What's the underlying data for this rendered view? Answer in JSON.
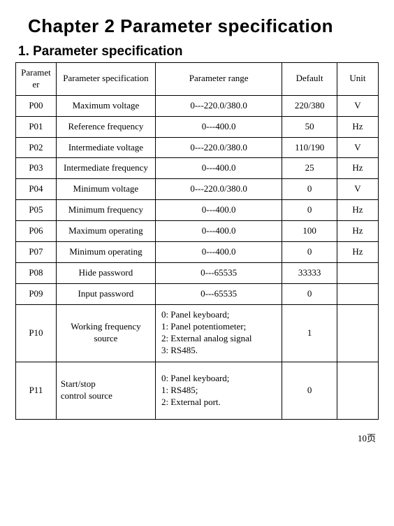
{
  "chapter_title": "Chapter 2   Parameter specification",
  "section_title": "1. Parameter specification",
  "columns": [
    "Parameter",
    "Parameter specification",
    "Parameter range",
    "Default",
    "Unit"
  ],
  "rows": [
    {
      "p": "P00",
      "spec": "Maximum voltage",
      "range": "0---220.0/380.0",
      "def": "220/380",
      "unit": "V"
    },
    {
      "p": "P01",
      "spec": "Reference frequency",
      "range": "0---400.0",
      "def": "50",
      "unit": "Hz"
    },
    {
      "p": "P02",
      "spec": "Intermediate voltage",
      "range": "0---220.0/380.0",
      "def": "110/190",
      "unit": "V"
    },
    {
      "p": "P03",
      "spec": "Intermediate frequency",
      "range": "0---400.0",
      "def": "25",
      "unit": "Hz"
    },
    {
      "p": "P04",
      "spec": "Minimum voltage",
      "range": "0---220.0/380.0",
      "def": "0",
      "unit": "V"
    },
    {
      "p": "P05",
      "spec": "Minimum frequency",
      "range": "0---400.0",
      "def": "0",
      "unit": "Hz"
    },
    {
      "p": "P06",
      "spec": "Maximum operating",
      "range": "0---400.0",
      "def": "100",
      "unit": "Hz"
    },
    {
      "p": "P07",
      "spec": "Minimum operating",
      "range": "0---400.0",
      "def": "0",
      "unit": "Hz"
    },
    {
      "p": "P08",
      "spec": "Hide password",
      "range": "0---65535",
      "def": "33333",
      "unit": ""
    },
    {
      "p": "P09",
      "spec": "Input password",
      "range": "0---65535",
      "def": "0",
      "unit": ""
    }
  ],
  "row10": {
    "p": "P10",
    "spec": "Working frequency source",
    "range_lines": [
      "0:  Panel keyboard;",
      "1:  Panel potentiometer;",
      "2:  External analog signal",
      "3:  RS485."
    ],
    "def": "1",
    "unit": ""
  },
  "row11": {
    "p": "P11",
    "spec": "Start/stop\ncontrol source",
    "range_lines": [
      "0:  Panel keyboard;",
      "1:  RS485;",
      "2:  External port."
    ],
    "def": "0",
    "unit": ""
  },
  "page_number": "10页"
}
